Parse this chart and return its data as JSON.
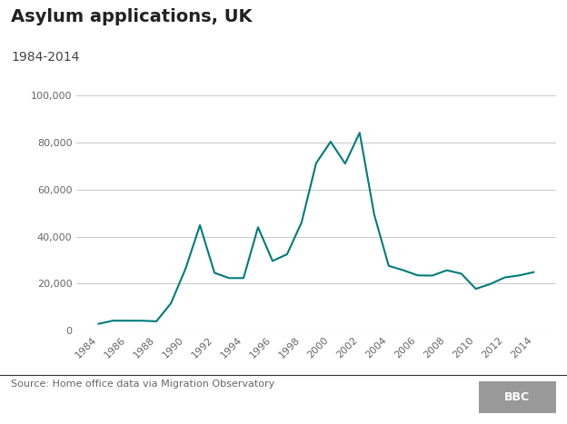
{
  "title": "Asylum applications, UK",
  "subtitle": "1984-2014",
  "source": "Source: Home office data via Migration Observatory",
  "years": [
    1984,
    1985,
    1986,
    1987,
    1988,
    1989,
    1990,
    1991,
    1992,
    1993,
    1994,
    1995,
    1996,
    1997,
    1998,
    1999,
    2000,
    2001,
    2002,
    2003,
    2004,
    2005,
    2006,
    2007,
    2008,
    2009,
    2010,
    2011,
    2012,
    2013,
    2014
  ],
  "values": [
    2905,
    4266,
    4266,
    4256,
    3998,
    11640,
    26205,
    44840,
    24605,
    22370,
    22370,
    43965,
    29640,
    32500,
    46015,
    71160,
    80315,
    71025,
    84130,
    49405,
    27580,
    25710,
    23520,
    23430,
    25670,
    24250,
    17790,
    19855,
    22655,
    23507,
    24914
  ],
  "line_color": "#007b7b",
  "line_width": 1.5,
  "ylim": [
    0,
    100000
  ],
  "yticks": [
    0,
    20000,
    40000,
    60000,
    80000,
    100000
  ],
  "xticks": [
    1984,
    1986,
    1988,
    1990,
    1992,
    1994,
    1996,
    1998,
    2000,
    2002,
    2004,
    2006,
    2008,
    2010,
    2012,
    2014
  ],
  "grid_color": "#cccccc",
  "bg_color": "#ffffff",
  "title_fontsize": 14,
  "subtitle_fontsize": 10,
  "tick_fontsize": 8,
  "source_fontsize": 8,
  "tick_color": "#666666",
  "title_color": "#222222",
  "subtitle_color": "#444444",
  "source_color": "#666666",
  "bbc_box_color": "#999999",
  "bbc_text_color": "#ffffff",
  "separator_color": "#333333"
}
